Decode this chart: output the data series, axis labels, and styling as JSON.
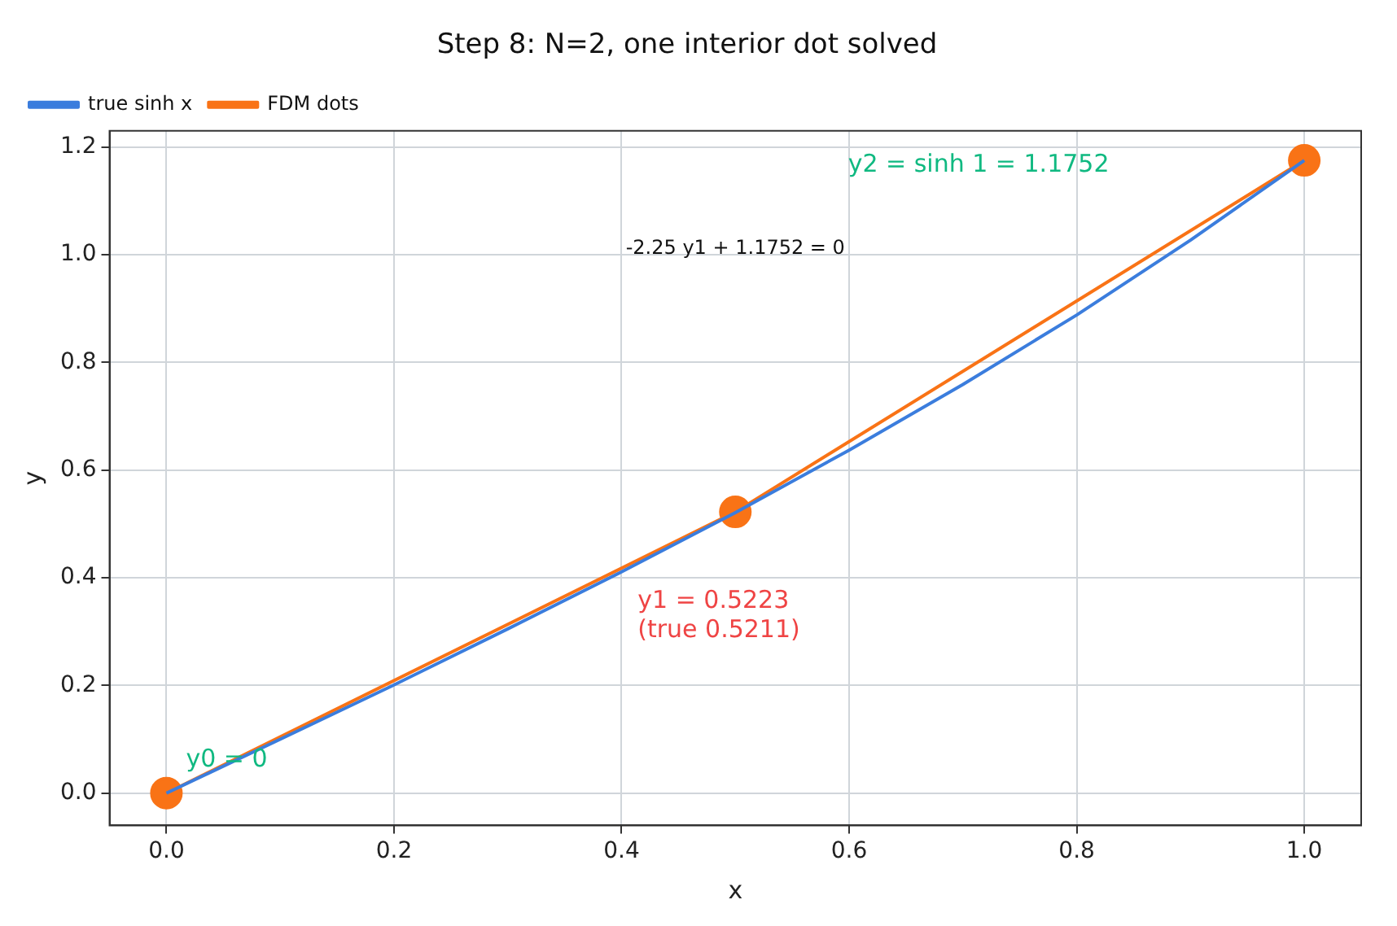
{
  "chart_data": {
    "type": "line",
    "title": "Step 8: N=2, one interior dot solved",
    "xlabel": "x",
    "ylabel": "y",
    "xlim": [
      -0.05,
      1.05
    ],
    "ylim": [
      -0.06,
      1.23
    ],
    "xticks": [
      {
        "value": 0,
        "label": "0.0"
      },
      0.2,
      0.4,
      0.6,
      0.8,
      {
        "value": 1,
        "label": "1.0"
      }
    ],
    "yticks": [
      {
        "value": 0,
        "label": "0.0"
      },
      0.2,
      0.4,
      0.6,
      0.8,
      {
        "value": 1,
        "label": "1.0"
      },
      1.2
    ],
    "grid": true,
    "legend": "top left",
    "series": [
      {
        "name": "true sinh x",
        "color": "#3b7ddd",
        "marker": "none",
        "x": [
          0,
          0.1,
          0.2,
          0.3,
          0.4,
          0.5,
          0.6,
          0.7,
          0.8,
          0.9,
          1
        ],
        "values": [
          0,
          0.1,
          0.201,
          0.305,
          0.411,
          0.521,
          0.637,
          0.759,
          0.888,
          1.027,
          1.175
        ]
      },
      {
        "name": "FDM dots",
        "color": "#f97316",
        "marker": "circle",
        "x": [
          0,
          0.5,
          1
        ],
        "values": [
          0,
          0.5223,
          1.1752
        ]
      }
    ],
    "annotations": [
      {
        "text": "y0 = 0",
        "x": 0,
        "y": 0
      },
      {
        "text": "y1 = 0.5223\n(true 0.5211)",
        "x": 0.5,
        "y": 0.5223
      },
      "y2 = sinh 1 = 1.1752",
      "-2.25 y1 + 1.1752 = 0"
    ]
  }
}
